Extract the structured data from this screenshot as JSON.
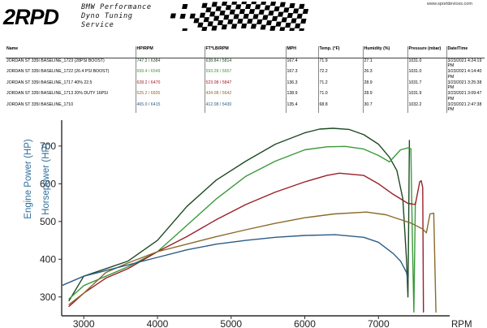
{
  "header": {
    "logo_text": "2RPD",
    "tagline": [
      "BMW Performance",
      "Dyno Tuning",
      "Service"
    ],
    "website": "www.sportdevices.com"
  },
  "run_table": {
    "columns": [
      "Name",
      "HP/RPM",
      "FT*LB/RPM",
      "MPH",
      "Temp. (°F)",
      "Humidity (%)",
      "Pressure (mbar)",
      "Date/Time"
    ],
    "rows": [
      {
        "name": "JORDAN ST 335I BASELINE_1723 (28PSI BOOST)",
        "hp": "747.2 / 6384",
        "tq": "638.84 / 5814",
        "mph": "167.4",
        "temp": "71.9",
        "humidity": "27.1",
        "pressure": "1031.0",
        "datetime": "3/23/2021 4:24:19 PM",
        "color": "#1e4a24"
      },
      {
        "name": "JORDAN ST 335I BASELINE_1722 (26.4 PSI BOOST)",
        "hp": "699.4 / 6549",
        "tq": "593.28 / 5657",
        "mph": "167.3",
        "temp": "72.2",
        "humidity": "26.3",
        "pressure": "1031.0",
        "datetime": "3/23/2021 4:14:40 PM",
        "color": "#3a9a3a"
      },
      {
        "name": "JORDAN ST 335I BASELINE_1717 40% 22.5",
        "hp": "628.2 / 6470",
        "tq": "523.08 / 5847",
        "mph": "136.3",
        "temp": "71.2",
        "humidity": "28.9",
        "pressure": "1031.7",
        "datetime": "3/23/2021 3:25:38 PM",
        "color": "#9a1f28"
      },
      {
        "name": "JORDAN ST 335I BASELINE_1713 20% DUTY 16PSI",
        "hp": "525.2 / 6835",
        "tq": "434.08 / 5642",
        "mph": "138.9",
        "temp": "71.0",
        "humidity": "28.9",
        "pressure": "1031.9",
        "datetime": "3/23/2021 3:09:47 PM",
        "color": "#8a6a2a"
      },
      {
        "name": "JORDAN ST 335I BASELINE_1710",
        "hp": "465.0 / 6415",
        "tq": "412.08 / 5430",
        "mph": "135.4",
        "temp": "68.8",
        "humidity": "30.7",
        "pressure": "1032.2",
        "datetime": "3/23/2021 2:47:38 PM",
        "color": "#2d5c86"
      }
    ]
  },
  "chart_data": {
    "type": "line",
    "xlabel": "RPM",
    "ylabel_left": "Engine Power (HP)",
    "ylabel_right": "Horsepower (HP)",
    "xlim": [
      2700,
      7900
    ],
    "ylim": [
      250,
      760
    ],
    "x_ticks": [
      3000,
      4000,
      5000,
      6000,
      7000
    ],
    "y_ticks": [
      300,
      400,
      500,
      600,
      700
    ],
    "grid": false,
    "series": [
      {
        "name": "JORDAN ST 335I BASELINE_1723 (28PSI BOOST)",
        "color": "#1e4a24",
        "x": [
          2800,
          3000,
          3300,
          3600,
          4000,
          4400,
          4800,
          5200,
          5600,
          6000,
          6200,
          6384,
          6600,
          6800,
          7000,
          7150,
          7250,
          7330,
          7380,
          7400,
          7410,
          7420
        ],
        "y": [
          290,
          355,
          375,
          395,
          450,
          540,
          610,
          660,
          705,
          735,
          745,
          747,
          744,
          730,
          705,
          670,
          635,
          560,
          400,
          300,
          500,
          715
        ]
      },
      {
        "name": "JORDAN ST 335I BASELINE_1722 (26.4 PSI BOOST)",
        "color": "#3a9a3a",
        "x": [
          2800,
          3000,
          3300,
          3600,
          4000,
          4400,
          4800,
          5200,
          5600,
          6000,
          6300,
          6549,
          6800,
          7000,
          7150,
          7300,
          7400,
          7440,
          7460,
          7480,
          7500
        ],
        "y": [
          295,
          330,
          355,
          380,
          420,
          490,
          560,
          620,
          660,
          690,
          698,
          699,
          692,
          675,
          658,
          690,
          695,
          693,
          450,
          260,
          550
        ]
      },
      {
        "name": "JORDAN ST 335I BASELINE_1717 40% 22.5",
        "color": "#9a1f28",
        "x": [
          2800,
          3000,
          3300,
          3600,
          4000,
          4400,
          4800,
          5200,
          5600,
          6000,
          6300,
          6470,
          6800,
          7000,
          7200,
          7400,
          7500,
          7560,
          7580,
          7600,
          7610
        ],
        "y": [
          275,
          310,
          350,
          375,
          420,
          460,
          505,
          545,
          578,
          605,
          622,
          628,
          622,
          600,
          572,
          548,
          545,
          605,
          608,
          590,
          260
        ]
      },
      {
        "name": "JORDAN ST 335I BASELINE_1713 20% DUTY 16PSI",
        "color": "#8a6a2a",
        "x": [
          2800,
          3000,
          3300,
          3600,
          4000,
          4400,
          4800,
          5200,
          5600,
          6000,
          6400,
          6835,
          7100,
          7300,
          7450,
          7600,
          7650,
          7700,
          7750,
          7780
        ],
        "y": [
          280,
          310,
          365,
          390,
          420,
          440,
          460,
          478,
          495,
          510,
          520,
          525,
          518,
          505,
          495,
          480,
          470,
          520,
          522,
          260
        ]
      },
      {
        "name": "JORDAN ST 335I BASELINE_1710",
        "color": "#2d5c86",
        "x": [
          2700,
          3000,
          3300,
          3600,
          4000,
          4400,
          4800,
          5200,
          5600,
          6000,
          6415,
          6800,
          7000,
          7200,
          7300,
          7380,
          7400
        ],
        "y": [
          330,
          355,
          370,
          385,
          405,
          425,
          440,
          450,
          458,
          463,
          465,
          458,
          445,
          415,
          395,
          365,
          345
        ]
      }
    ]
  },
  "colors": {
    "axis": "#2a2a2a",
    "ylabel_left": "#2d6f9e",
    "ylabel_right": "#2d6f9e"
  }
}
